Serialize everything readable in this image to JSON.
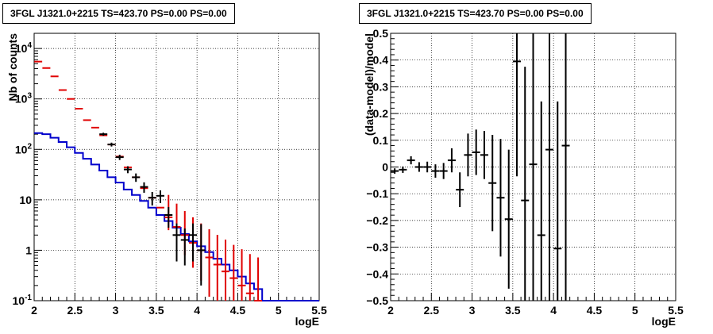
{
  "chart_data": [
    {
      "type": "line",
      "title": "3FGL J1321.0+2215 TS=423.70 PS=0.00 PS=0.00",
      "xlabel": "logE",
      "ylabel": "Nb of counts",
      "xlim": [
        2,
        5.5
      ],
      "ylim": [
        0.1,
        20000
      ],
      "yscale": "log",
      "grid": true,
      "xticks": [
        "2",
        "2.5",
        "3",
        "3.5",
        "4",
        "4.5",
        "5",
        "5.5"
      ],
      "yticks": [
        "10^{-1}",
        "1",
        "10",
        "10^{2}",
        "10^{3}",
        "10^{4}"
      ],
      "colors": {
        "data": "#000000",
        "model_points": "#e00000",
        "model_hist": "#0000cc"
      },
      "series": [
        {
          "role": "model_hist",
          "bins": [
            2.0,
            2.1,
            2.2,
            2.3,
            2.4,
            2.5,
            2.6,
            2.7,
            2.8,
            2.9,
            3.0,
            3.1,
            3.2,
            3.3,
            3.4,
            3.5,
            3.6,
            3.7,
            3.8,
            3.9,
            4.0,
            4.1,
            4.2,
            4.3,
            4.4,
            4.5,
            4.6,
            4.7,
            4.8,
            4.9,
            5.0,
            5.1,
            5.2,
            5.3,
            5.4,
            5.5
          ],
          "values": [
            210,
            200,
            170,
            140,
            110,
            85,
            65,
            50,
            38,
            28,
            22,
            16,
            12.5,
            9.5,
            7,
            5,
            3.8,
            2.8,
            2.1,
            1.5,
            1.2,
            0.92,
            0.68,
            0.52,
            0.4,
            0.3,
            0.22,
            0.17,
            0.1,
            0.1,
            0.1,
            0.1,
            0.1,
            0.1,
            0.1
          ]
        },
        {
          "role": "model_points",
          "x": [
            2.05,
            2.15,
            2.25,
            2.35,
            2.45,
            2.55,
            2.65,
            2.75,
            2.85,
            2.95,
            3.05,
            3.15,
            3.25,
            3.35,
            3.45,
            3.55,
            3.65,
            3.75,
            3.85,
            3.95,
            4.05,
            4.15,
            4.25,
            4.35,
            4.45,
            4.55,
            4.65,
            4.75
          ],
          "y": [
            5500,
            4100,
            2800,
            1500,
            1000,
            640,
            380,
            270,
            190,
            125,
            72,
            44,
            28,
            17,
            11,
            7,
            4.5,
            2.9,
            2.0,
            1.4,
            1.0,
            0.72,
            0.52,
            0.38,
            0.28,
            0.2,
            0.14,
            0.1
          ],
          "err_lo": [
            0,
            0,
            0,
            0,
            0,
            0,
            0,
            0,
            0,
            0,
            0,
            0,
            0,
            0,
            0,
            0,
            2.0,
            1.5,
            1.2,
            0.95,
            0.75,
            0.6,
            0.47,
            0.36,
            0.28,
            0.2,
            0.14,
            0.1
          ],
          "err_hi": [
            0,
            0,
            0,
            0,
            0,
            0,
            0,
            0,
            0,
            0,
            0,
            0,
            0,
            0,
            0,
            0,
            8,
            5.5,
            4,
            3.1,
            2.4,
            1.9,
            1.5,
            1.25,
            1.0,
            0.85,
            0.7,
            0.62
          ]
        },
        {
          "role": "data",
          "x": [
            2.85,
            2.95,
            3.05,
            3.15,
            3.25,
            3.35,
            3.45,
            3.55,
            3.65,
            3.75,
            3.85,
            3.95,
            4.05
          ],
          "y": [
            200,
            125,
            70,
            40,
            28,
            18,
            11,
            12,
            5,
            2,
            1.6,
            2,
            1
          ],
          "err_lo": [
            14,
            11,
            8.4,
            6.3,
            5.3,
            4.2,
            3.3,
            3.4,
            2.2,
            1.4,
            1.1,
            1.4,
            0.8
          ],
          "err_hi": [
            14,
            11,
            8.4,
            6.3,
            5.3,
            4.2,
            3.3,
            3.4,
            2.2,
            1.4,
            1.1,
            1.4,
            2.3
          ]
        }
      ]
    },
    {
      "type": "scatter",
      "title": "3FGL J1321.0+2215 TS=423.70 PS=0.00 PS=0.00",
      "xlabel": "logE",
      "ylabel": "(data-model)/model",
      "xlim": [
        2,
        5.5
      ],
      "ylim": [
        -0.5,
        0.5
      ],
      "grid": true,
      "xticks": [
        "2",
        "2.5",
        "3",
        "3.5",
        "4",
        "4.5",
        "5",
        "5.5"
      ],
      "yticks": [
        "−0.5",
        "−0.4",
        "−0.3",
        "−0.2",
        "−0.1",
        "0",
        "0.1",
        "0.2",
        "0.3",
        "0.4",
        "0.5"
      ],
      "colors": {
        "data": "#000000"
      },
      "series": [
        {
          "role": "residuals",
          "x": [
            2.05,
            2.15,
            2.25,
            2.35,
            2.45,
            2.55,
            2.65,
            2.75,
            2.85,
            2.95,
            3.05,
            3.15,
            3.25,
            3.35,
            3.45,
            3.55,
            3.65,
            3.75,
            3.85,
            3.95,
            4.05,
            4.15
          ],
          "y": [
            -0.015,
            -0.01,
            0.025,
            0.0,
            0.0,
            -0.015,
            -0.015,
            0.025,
            -0.085,
            0.045,
            0.055,
            0.045,
            -0.06,
            -0.115,
            -0.195,
            0.395,
            -0.125,
            0.01,
            -0.255,
            0.065,
            -0.305,
            0.08
          ],
          "err": [
            0.01,
            0.012,
            0.015,
            0.018,
            0.02,
            0.025,
            0.03,
            0.045,
            0.065,
            0.08,
            0.085,
            0.09,
            0.18,
            0.22,
            0.26,
            0.43,
            0.5,
            0.6,
            0.5,
            0.6,
            0.55,
            0.6
          ]
        }
      ]
    }
  ]
}
